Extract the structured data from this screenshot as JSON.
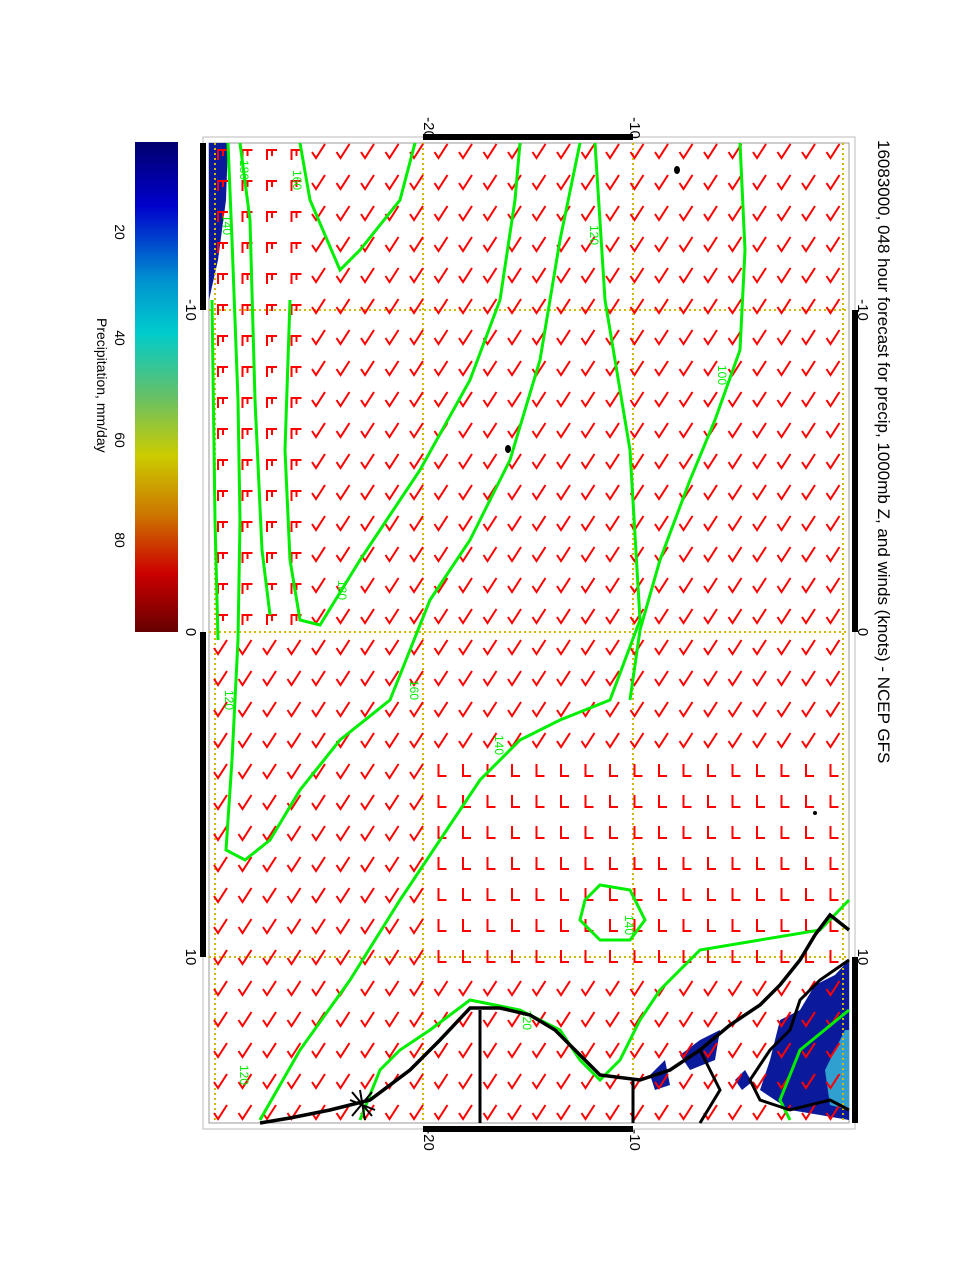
{
  "title": "16083000, 048 hour forecast for precip, 1000mb Z, and winds (knots) - NCEP GFS",
  "colorbar": {
    "label": "Precipitation, mm/day",
    "ticks": [
      "20",
      "40",
      "60",
      "80"
    ],
    "colors": [
      "#00006e",
      "#0000cc",
      "#0090d0",
      "#00cccc",
      "#66c066",
      "#cccc00",
      "#cc7700",
      "#cc0000",
      "#660000"
    ]
  },
  "axes": {
    "lat_ticks": [
      "-20",
      "-10"
    ],
    "lon_ticks": [
      "-10",
      "0",
      "10"
    ]
  },
  "contour_labels": [
    "180",
    "160",
    "140",
    "180",
    "160",
    "140",
    "120",
    "100",
    "140",
    "120",
    "120",
    "120"
  ],
  "colors": {
    "wind": "#ff0000",
    "contour": "#00ee00",
    "grid": "#d4b800",
    "coast": "#000000",
    "precip": "#0a1a9a"
  }
}
